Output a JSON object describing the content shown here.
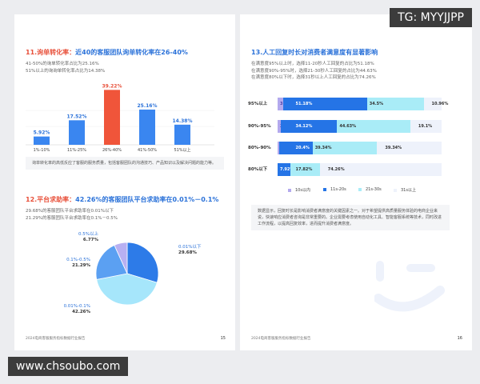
{
  "watermarks": {
    "top": "TG: MYYJJPP",
    "bottom": "www.chsoubo.com"
  },
  "left": {
    "s11": {
      "title_prefix": "11.询单转化率：",
      "title_main": "近40的客服团队询单转化率在26-40%",
      "lines": [
        "41-50%的询单转化率占比为25.16%",
        "51%以上的询询单转化率占比为14.38%"
      ],
      "note": "询单转化率的高低反应了客服的服务质量，包括客服团队的沟通技巧、产品知识以及解决问题的能力等。"
    },
    "s12": {
      "title_prefix": "12.平台求助率：",
      "title_main": "42.26%的客服团队平台求助率在0.01%－0.1%",
      "lines": [
        "29.68%的客服团队平台求助率在0.01%以下",
        "21.29%的客服团队平台求助率在0.1%－0.5%"
      ]
    },
    "footer": "2024电商客服服务指标数据行业报告",
    "page": "15"
  },
  "right": {
    "s13": {
      "title": "13.人工回复时长对消费者满意度有显著影响",
      "lines": [
        "在满意度95%以上时，选择11-20秒人工回复的占比为51.18%",
        "在满意度90%-95%时，选择21-30秒人工回复的占比为44.63%",
        "在满意度80%以下时，选择31秒以上人工回复的占比为74.26%"
      ],
      "note": "数据显示，回复时长是影响消费者满意度的关键因素之一。对于希望提供高质量服务体验的电商企业来说，快速响应消费者咨询是非常重要的。企业需要考虑使用自动化工具、智能客服系统等技术，同时改进工作流程，以提高回复效率，进而提升消费者满意度。"
    },
    "footer": "2024电商客服服务指标数据行业报告",
    "page": "16"
  },
  "chart_data": [
    {
      "type": "bar",
      "categories": [
        "1%-10%",
        "11%-25%",
        "26%-40%",
        "41%-50%",
        "51%以上"
      ],
      "values": [
        5.92,
        17.52,
        39.22,
        25.16,
        14.38
      ],
      "labels": [
        "5.92%",
        "17.52%",
        "39.22%",
        "25.16%",
        "14.38%"
      ],
      "highlight": 2,
      "colors": {
        "normal": "#3a86f0",
        "highlight": "#f0553a"
      }
    },
    {
      "type": "pie",
      "slices": [
        {
          "name": "0.01%以下",
          "value": 29.68,
          "label": "29.68%",
          "color": "#2d7be8"
        },
        {
          "name": "0.01%-0.1%",
          "value": 42.26,
          "label": "42.26%",
          "color": "#a6e6fb"
        },
        {
          "name": "0.1%-0.5%",
          "value": 21.29,
          "label": "21.29%",
          "color": "#5ba0f2"
        },
        {
          "name": "0.5%以上",
          "value": 6.77,
          "label": "6.77%",
          "color": "#b8b0f2"
        }
      ]
    },
    {
      "type": "bar",
      "stacked": true,
      "orientation": "horizontal",
      "categories": [
        "95%以上",
        "90%-95%",
        "80%-90%",
        "80%以下"
      ],
      "series": [
        {
          "name": "10s以内",
          "color": "#b3a9ee",
          "values": [
            3.36,
            2.15,
            0.92,
            0
          ],
          "labels": [
            "3.36%",
            "2.15%",
            "0.92%",
            ""
          ]
        },
        {
          "name": "11s-20s",
          "color": "#2574e6",
          "values": [
            51.18,
            34.12,
            20.4,
            7.92
          ],
          "labels": [
            "51.18%",
            "34.12%",
            "20.4%",
            "7.92%"
          ]
        },
        {
          "name": "21s-30s",
          "color": "#a9ecf7",
          "values": [
            34.5,
            44.63,
            39.34,
            17.82
          ],
          "labels": [
            "34.5%",
            "44.63%",
            "39.34%",
            "17.82%"
          ]
        },
        {
          "name": "31s以上",
          "color": "#eef2fb",
          "values": [
            10.96,
            19.1,
            39.34,
            74.26
          ],
          "labels": [
            "10.96%",
            "19.1%",
            "39.34%",
            "74.26%"
          ]
        }
      ]
    }
  ]
}
